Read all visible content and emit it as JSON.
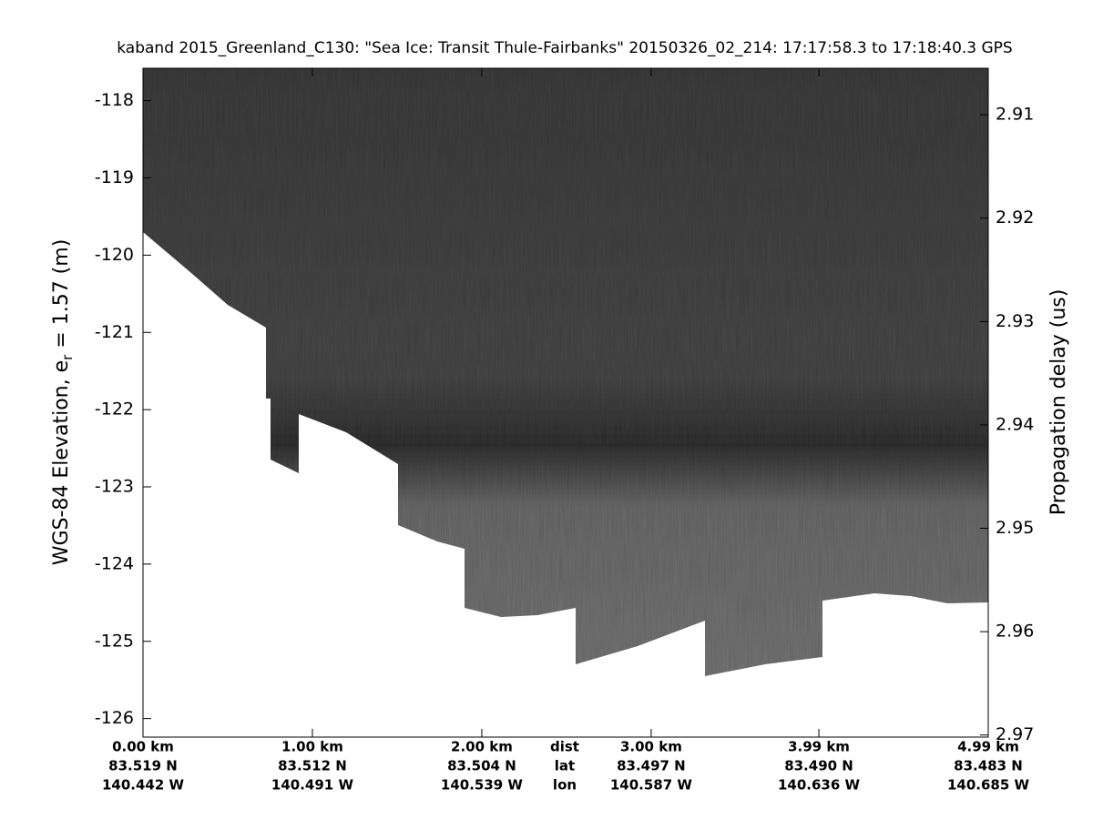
{
  "chart_data": {
    "type": "echogram",
    "title": "kaband 2015_Greenland_C130: \"Sea Ice: Transit Thule-Fairbanks\"  20150326_02_214: 17:17:58.3 to 17:18:40.3 GPS",
    "ylabel": {
      "text": "WGS-84 Elevation, e",
      "subscript": "r",
      "suffix": " = 1.57 (m)"
    },
    "y2label": "Propagation delay (us)",
    "ylim": [
      -126.24,
      -117.58
    ],
    "yticks": [
      -126,
      -125,
      -124,
      -123,
      -122,
      -121,
      -120,
      -119,
      -118
    ],
    "y2lim": [
      2.9702,
      2.9055
    ],
    "y2ticks": [
      2.91,
      2.92,
      2.93,
      2.94,
      2.95,
      2.96,
      2.97
    ],
    "xlim": [
      0,
      4.99
    ],
    "xticks": [
      {
        "value": 0,
        "label": "0.00 km"
      },
      {
        "value": 1,
        "label": "1.00 km"
      },
      {
        "value": 2,
        "label": "2.00 km"
      },
      {
        "value": 3,
        "label": "3.00 km"
      },
      {
        "value": 3.99,
        "label": "3.99 km"
      },
      {
        "value": 4.99,
        "label": "4.99 km"
      }
    ],
    "xtick_lat": [
      "83.519 N",
      "83.512 N",
      "83.504 N",
      "83.497 N",
      "83.490 N",
      "83.483 N"
    ],
    "xtick_lon": [
      "140.442 W",
      "140.491 W",
      "140.539 W",
      "140.587 W",
      "140.636 W",
      "140.685 W"
    ],
    "row_labels": [
      "dist",
      "lat",
      "lon"
    ]
  }
}
